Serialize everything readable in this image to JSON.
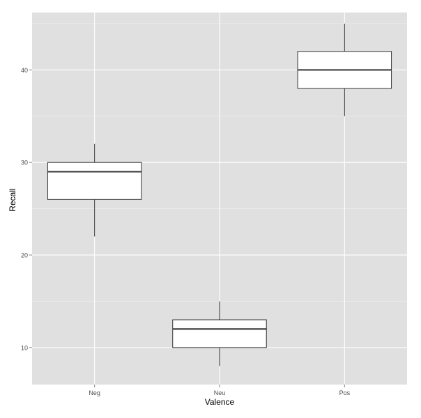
{
  "chart_data": {
    "type": "boxplot",
    "title": "",
    "xlabel": "Valence",
    "ylabel": "Recall",
    "categories": [
      "Neg",
      "Neu",
      "Pos"
    ],
    "boxes": [
      {
        "category": "Neg",
        "whisker_low": 22,
        "q1": 26,
        "median": 29,
        "q3": 30,
        "whisker_high": 32
      },
      {
        "category": "Neu",
        "whisker_low": 8,
        "q1": 10,
        "median": 12,
        "q3": 13,
        "whisker_high": 15
      },
      {
        "category": "Pos",
        "whisker_low": 35,
        "q1": 38,
        "median": 40,
        "q3": 42,
        "whisker_high": 45
      }
    ],
    "ylim": [
      6,
      46.2
    ],
    "y_ticks": [
      10,
      20,
      30,
      40
    ],
    "grid": true,
    "panel_background": "#e0e0e0",
    "grid_color": "#ffffff",
    "box_fill": "#ffffff",
    "box_stroke": "#333333",
    "tick_label_color": "#4d4d4d"
  }
}
